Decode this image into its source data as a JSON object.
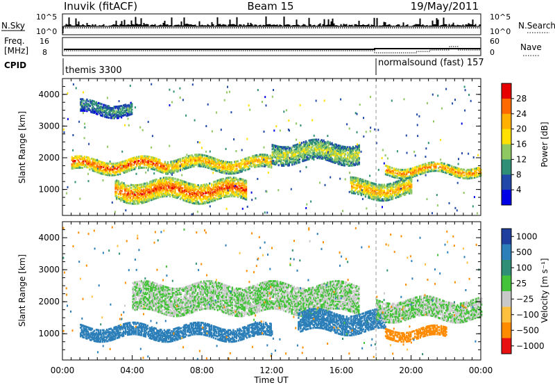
{
  "header": {
    "station": "Inuvik (fitACF)",
    "beam": "Beam 15",
    "date": "19/May/2011"
  },
  "strip_nsky": {
    "label": "N.Sky",
    "ytick_top": "10^5",
    "ytick_bottom": "10^0",
    "right_label": "N.Search",
    "right_tick_top": "10^5",
    "right_tick_bottom": "10^0"
  },
  "strip_freq": {
    "label_line1": "Freq.",
    "label_line2": "[MHz]",
    "ytick_top": "16",
    "ytick_bottom": "8",
    "right_label": "Nave",
    "right_tick_top": "60",
    "right_tick_bottom": "0"
  },
  "strip_cpid": {
    "label": "CPID",
    "mode1": "themis 3300",
    "mode2": "normalsound (fast) 157",
    "mode_change_time": "18:00"
  },
  "colors": {
    "power_scale": [
      "#0000e6",
      "#1f48a8",
      "#2f8f76",
      "#8fc860",
      "#ffe000",
      "#ffb000",
      "#ff6a00",
      "#e60000"
    ],
    "velocity_scale": [
      "#1f3f9f",
      "#2c7fb8",
      "#2f8f76",
      "#44c23a",
      "#c8c8c8",
      "#ffc040",
      "#ff8c00",
      "#e81010"
    ],
    "ground_scatter": "#c8c8c8"
  },
  "chart_data": [
    {
      "type": "heatmap",
      "name": "power",
      "xlabel": "",
      "ylabel": "Slant Range [km]",
      "x_ticks": [
        "00:00",
        "04:00",
        "08:00",
        "12:00",
        "16:00",
        "20:00",
        "00:00"
      ],
      "y_ticks": [
        "1000",
        "2000",
        "3000",
        "4000"
      ],
      "ylim": [
        180,
        4500
      ],
      "colorbar_label": "Power [dB]",
      "colorbar_ticks": [
        "4",
        "8",
        "12",
        "16",
        "20",
        "24",
        "28"
      ],
      "colorbar_range": [
        0,
        30
      ],
      "bands": [
        {
          "hours": [
            0.5,
            6.0
          ],
          "range_km": [
            1600,
            2000
          ],
          "power_db": 26
        },
        {
          "hours": [
            6.0,
            12.0
          ],
          "range_km": [
            1650,
            2050
          ],
          "power_db": 22
        },
        {
          "hours": [
            12.0,
            17.0
          ],
          "range_km": [
            1900,
            2500
          ],
          "power_db": 16
        },
        {
          "hours": [
            18.5,
            24.0
          ],
          "range_km": [
            1500,
            1800
          ],
          "power_db": 24
        },
        {
          "hours": [
            3.0,
            10.5
          ],
          "range_km": [
            700,
            1300
          ],
          "power_db": 26
        },
        {
          "hours": [
            16.5,
            20.0
          ],
          "range_km": [
            800,
            1300
          ],
          "power_db": 22
        },
        {
          "hours": [
            1.0,
            4.0
          ],
          "range_km": [
            3400,
            3800
          ],
          "power_db": 10
        }
      ]
    },
    {
      "type": "heatmap",
      "name": "velocity",
      "xlabel": "Time UT",
      "ylabel": "Slant Range [km]",
      "x_ticks": [
        "00:00",
        "04:00",
        "08:00",
        "12:00",
        "16:00",
        "20:00",
        "00:00"
      ],
      "y_ticks": [
        "1000",
        "2000",
        "3000",
        "4000"
      ],
      "ylim": [
        180,
        4500
      ],
      "colorbar_label": "Velocity [m s⁻¹]",
      "colorbar_ticks": [
        "1000",
        "500",
        "100",
        "25",
        "−25",
        "−100",
        "−500",
        "−1000"
      ],
      "colorbar_range": [
        -1000,
        1000
      ],
      "bands": [
        {
          "hours": [
            4.0,
            17.0
          ],
          "range_km": [
            1700,
            2600
          ],
          "velocity": 0
        },
        {
          "hours": [
            1.0,
            12.0
          ],
          "range_km": [
            900,
            1300
          ],
          "velocity": 200
        },
        {
          "hours": [
            13.5,
            18.5
          ],
          "range_km": [
            1100,
            1700
          ],
          "velocity": 300
        },
        {
          "hours": [
            18.5,
            22.0
          ],
          "range_km": [
            900,
            1200
          ],
          "velocity": -300
        },
        {
          "hours": [
            18.0,
            24.0
          ],
          "range_km": [
            1500,
            2100
          ],
          "velocity": 0
        }
      ]
    }
  ]
}
